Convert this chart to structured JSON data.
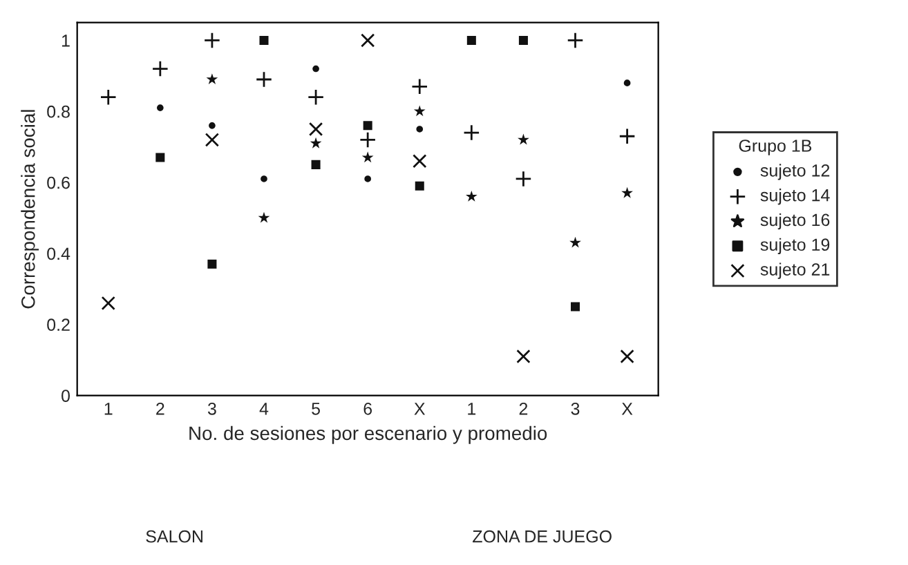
{
  "chart_data": {
    "type": "scatter",
    "ylabel": "Correspondencia social",
    "xlabel": "No. de sesiones por escenario y promedio",
    "categories": [
      "1",
      "2",
      "3",
      "4",
      "5",
      "6",
      "X",
      "1",
      "2",
      "3",
      "X"
    ],
    "ylim": [
      0,
      1.05
    ],
    "yticks": [
      0,
      {
        "value": 0.2,
        "label": "0.2"
      },
      {
        "value": 0.4,
        "label": "0.4"
      },
      {
        "value": 0.6,
        "label": "0.6"
      },
      {
        "value": 0.8,
        "label": "0.8"
      },
      1
    ],
    "legend": "right",
    "legend_title": "Grupo 1B",
    "grid": false,
    "series": [
      {
        "name": "sujeto 12",
        "color": "#111111",
        "marker": "circle",
        "values": [
          null,
          0.81,
          0.76,
          0.61,
          0.92,
          0.61,
          0.75,
          null,
          null,
          null,
          0.88
        ]
      },
      {
        "name": "sujeto 14",
        "color": "#111111",
        "marker": "plus",
        "values": [
          0.84,
          0.92,
          1.0,
          0.89,
          0.84,
          0.72,
          0.87,
          0.74,
          0.61,
          1.0,
          0.73
        ]
      },
      {
        "name": "sujeto 16",
        "color": "#111111",
        "marker": "star",
        "values": [
          null,
          null,
          0.89,
          0.5,
          0.71,
          0.67,
          0.8,
          0.56,
          0.72,
          0.43,
          0.57
        ]
      },
      {
        "name": "sujeto 19",
        "color": "#111111",
        "marker": "square",
        "values": [
          null,
          0.67,
          0.37,
          1.0,
          0.65,
          0.76,
          0.59,
          1.0,
          1.0,
          0.25,
          null
        ]
      },
      {
        "name": "sujeto 21",
        "color": "#111111",
        "marker": "cross",
        "values": [
          0.26,
          null,
          0.72,
          null,
          0.75,
          1.0,
          0.66,
          null,
          0.11,
          null,
          0.11
        ]
      }
    ],
    "annotations": [
      "SALON",
      "ZONA DE JUEGO"
    ]
  }
}
